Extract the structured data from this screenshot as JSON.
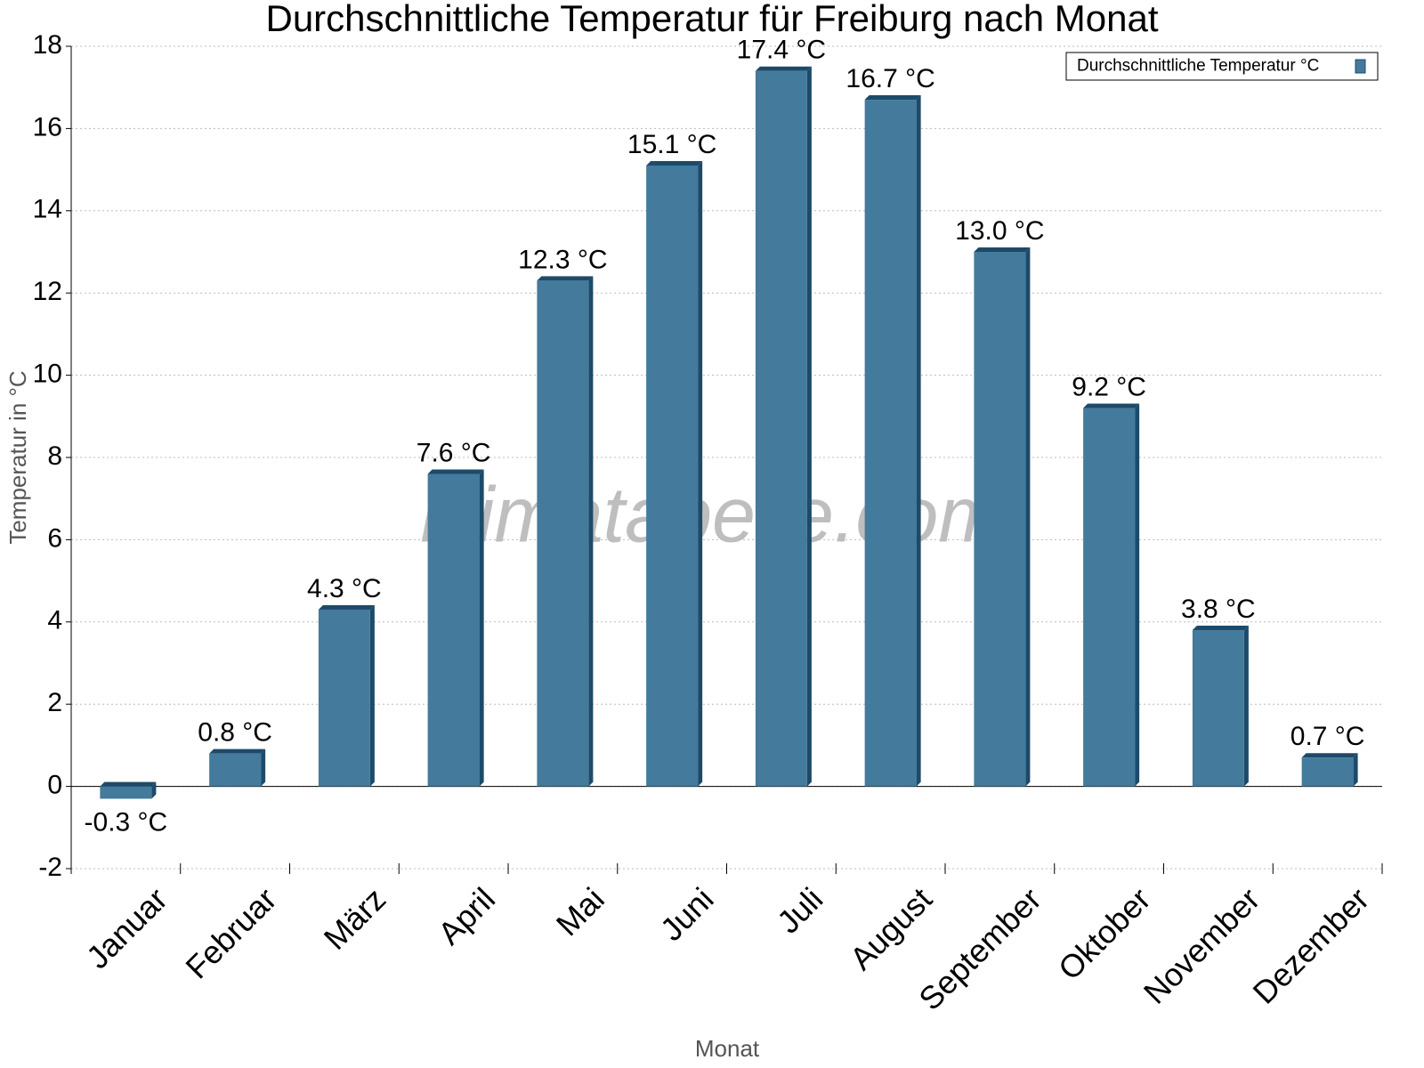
{
  "chart_data": {
    "type": "bar",
    "title": "Durchschnittliche Temperatur für Freiburg nach Monat",
    "xlabel": "Monat",
    "ylabel": "Temperatur in °C",
    "watermark": "klimatabelle.com",
    "categories": [
      "Januar",
      "Februar",
      "März",
      "April",
      "Mai",
      "Juni",
      "Juli",
      "August",
      "September",
      "Oktober",
      "November",
      "Dezember"
    ],
    "series": [
      {
        "name": "Durchschnittliche Temperatur °C",
        "color": "#447a9c",
        "values": [
          -0.3,
          0.8,
          4.3,
          7.6,
          12.3,
          15.1,
          17.4,
          16.7,
          13.0,
          9.2,
          3.8,
          0.7
        ],
        "value_labels": [
          "-0.3 °C",
          "0.8 °C",
          "4.3 °C",
          "7.6 °C",
          "12.3 °C",
          "15.1 °C",
          "17.4 °C",
          "16.7 °C",
          "13.0 °C",
          "9.2 °C",
          "3.8 °C",
          "0.7 °C"
        ]
      }
    ],
    "ylim": [
      -2,
      18
    ],
    "yticks": [
      -2,
      0,
      2,
      4,
      6,
      8,
      10,
      12,
      14,
      16,
      18
    ],
    "grid": true,
    "legend": "upper right"
  }
}
